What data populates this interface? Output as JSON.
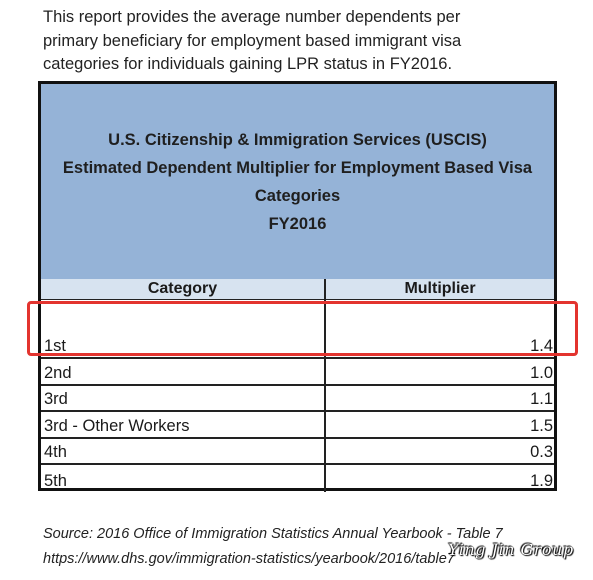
{
  "intro": {
    "line1": "This report provides the average number dependents per",
    "line2": "primary beneficiary for employment based immigrant visa",
    "line3": "categories for individuals gaining LPR status in FY2016."
  },
  "table": {
    "title_line1": "U.S. Citizenship & Immigration Services (USCIS)",
    "title_line2": "Estimated Dependent Multiplier for Employment Based Visa",
    "title_line3": "Categories",
    "title_line4": "FY2016",
    "col_category": "Category",
    "col_multiplier": "Multiplier",
    "rows": [
      {
        "category": "1st",
        "multiplier": "1.4"
      },
      {
        "category": "2nd",
        "multiplier": "1.0"
      },
      {
        "category": "3rd",
        "multiplier": "1.1"
      },
      {
        "category": "3rd - Other Workers",
        "multiplier": "1.5"
      },
      {
        "category": "4th",
        "multiplier": "0.3"
      },
      {
        "category": "5th",
        "multiplier": "1.9"
      }
    ]
  },
  "source": {
    "line1": "Source: 2016 Office of Immigration Statistics Annual Yearbook - Table 7",
    "line2": "https://www.dhs.gov/immigration-statistics/yearbook/2016/table7"
  },
  "watermark": "Ying Jin Group",
  "colors": {
    "header_bg": "#95b3d7",
    "highlight": "#e3342f"
  }
}
